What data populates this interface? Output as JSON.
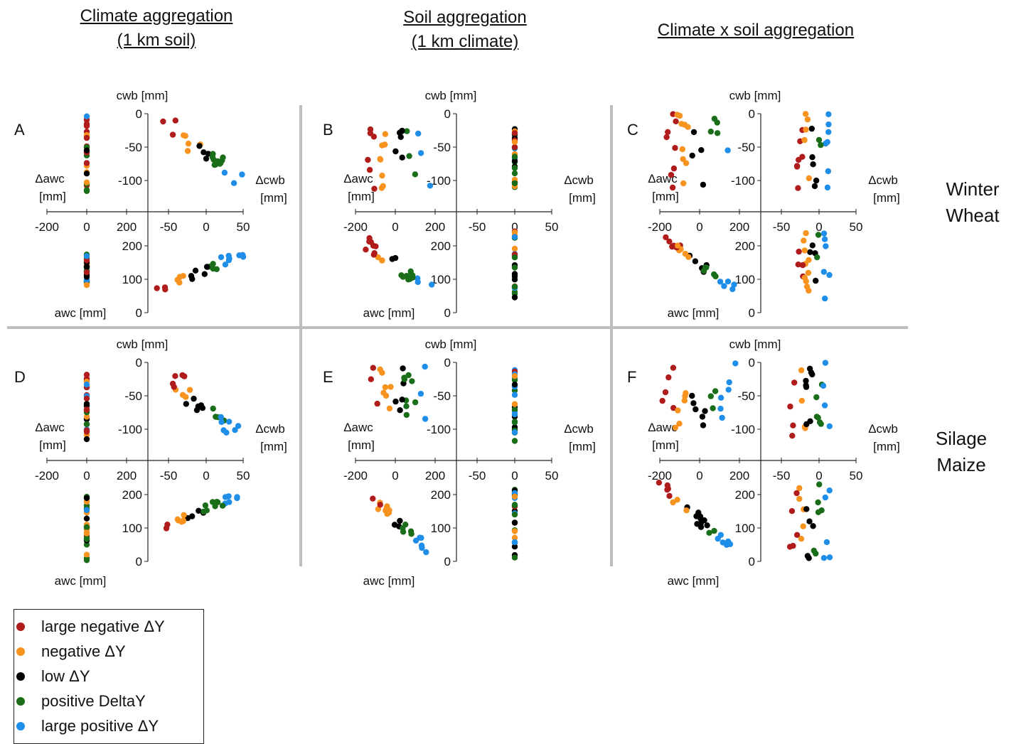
{
  "column_headers": [
    {
      "line1": "Climate aggregation",
      "line2": "(1 km soil)"
    },
    {
      "line1": "Soil aggregation",
      "line2": "(1 km climate)"
    },
    {
      "line1": "Climate x soil aggregation",
      "line2": ""
    }
  ],
  "row_labels": [
    {
      "line1": "Winter",
      "line2": "Wheat"
    },
    {
      "line1": "Silage",
      "line2": "Maize"
    }
  ],
  "axis_labels": {
    "cwb": "cwb [mm]",
    "awc": "awc [mm]",
    "dawc_1": "Δawc",
    "dawc_2": "[mm]",
    "dcwb_1": "Δcwb",
    "dcwb_2": "[mm]"
  },
  "colors": {
    "large_negative": "#b01c1c",
    "negative": "#f7931e",
    "low": "#000000",
    "positive": "#1a6e1a",
    "large_positive": "#1f8ee8",
    "divider": "#bdbdbd"
  },
  "legend": [
    {
      "key": "large_negative",
      "label": "large negative ΔY"
    },
    {
      "key": "negative",
      "label": "negative ΔY"
    },
    {
      "key": "low",
      "label": "low ΔY"
    },
    {
      "key": "positive",
      "label": "positive DeltaY"
    },
    {
      "key": "large_positive",
      "label": "large positive ΔY"
    }
  ],
  "chart_data": {
    "type": "scatter",
    "description_axes": {
      "dawc_ticks": [
        -200,
        0,
        200
      ],
      "dcwb_ticks": [
        -50,
        0,
        50
      ],
      "cwb_ticks": [
        0,
        -50,
        -100
      ],
      "awc_ticks": [
        200,
        100,
        0
      ],
      "dawc_range": [
        -200,
        200
      ],
      "dcwb_range": [
        -50,
        50
      ],
      "cwb_range": [
        -120,
        0
      ],
      "awc_range": [
        0,
        220
      ]
    },
    "panels": [
      {
        "letter": "A",
        "row": 0,
        "col": 0,
        "seed": 11,
        "q_tl": {
          "x": [
            0,
            0
          ],
          "y": [
            -120,
            0
          ],
          "mode": "line"
        },
        "q_tr": {
          "x": [
            -55,
            45
          ],
          "y": [
            -115,
            0
          ],
          "mode": "neg"
        },
        "q_bl": {
          "x": [
            0,
            0
          ],
          "y": [
            75,
            175
          ],
          "mode": "line"
        },
        "q_br": {
          "x": [
            -65,
            45
          ],
          "y": [
            70,
            175
          ],
          "mode": "pos"
        }
      },
      {
        "letter": "B",
        "row": 0,
        "col": 1,
        "seed": 23,
        "q_tl": {
          "x": [
            -150,
            175
          ],
          "y": [
            -115,
            -20
          ],
          "mode": "cloud"
        },
        "q_tr": {
          "x": [
            0,
            0
          ],
          "y": [
            -110,
            -15
          ],
          "mode": "line"
        },
        "q_bl": {
          "x": [
            -150,
            175
          ],
          "y": [
            40,
            210
          ],
          "mode": "neg2"
        },
        "q_br": {
          "x": [
            0,
            0
          ],
          "y": [
            40,
            260
          ],
          "mode": "line"
        }
      },
      {
        "letter": "C",
        "row": 0,
        "col": 2,
        "seed": 37,
        "q_tl": {
          "x": [
            -190,
            165
          ],
          "y": [
            -115,
            0
          ],
          "mode": "cloud"
        },
        "q_tr": {
          "x": [
            -30,
            15
          ],
          "y": [
            -115,
            0
          ],
          "mode": "cloud"
        },
        "q_bl": {
          "x": [
            -180,
            160
          ],
          "y": [
            40,
            230
          ],
          "mode": "neg2"
        },
        "q_br": {
          "x": [
            -30,
            15
          ],
          "y": [
            40,
            240
          ],
          "mode": "cloud"
        }
      },
      {
        "letter": "D",
        "row": 1,
        "col": 0,
        "seed": 49,
        "q_tl": {
          "x": [
            0,
            0
          ],
          "y": [
            -115,
            0
          ],
          "mode": "line"
        },
        "q_tr": {
          "x": [
            -55,
            35
          ],
          "y": [
            -115,
            0
          ],
          "mode": "neg"
        },
        "q_bl": {
          "x": [
            0,
            0
          ],
          "y": [
            0,
            195
          ],
          "mode": "line"
        },
        "q_br": {
          "x": [
            -70,
            40
          ],
          "y": [
            85,
            195
          ],
          "mode": "pos"
        }
      },
      {
        "letter": "E",
        "row": 1,
        "col": 1,
        "seed": 61,
        "q_tl": {
          "x": [
            -150,
            170
          ],
          "y": [
            -120,
            0
          ],
          "mode": "cloud"
        },
        "q_tr": {
          "x": [
            0,
            0
          ],
          "y": [
            -125,
            0
          ],
          "mode": "line"
        },
        "q_bl": {
          "x": [
            -150,
            165
          ],
          "y": [
            0,
            215
          ],
          "mode": "neg2"
        },
        "q_br": {
          "x": [
            0,
            0
          ],
          "y": [
            0,
            225
          ],
          "mode": "line"
        }
      },
      {
        "letter": "F",
        "row": 1,
        "col": 2,
        "seed": 73,
        "q_tl": {
          "x": [
            -200,
            180
          ],
          "y": [
            -110,
            0
          ],
          "mode": "cloud"
        },
        "q_tr": {
          "x": [
            -40,
            15
          ],
          "y": [
            -110,
            0
          ],
          "mode": "cloud"
        },
        "q_bl": {
          "x": [
            -200,
            170
          ],
          "y": [
            0,
            230
          ],
          "mode": "neg2"
        },
        "q_br": {
          "x": [
            -40,
            15
          ],
          "y": [
            0,
            235
          ],
          "mode": "cloud"
        }
      }
    ]
  }
}
